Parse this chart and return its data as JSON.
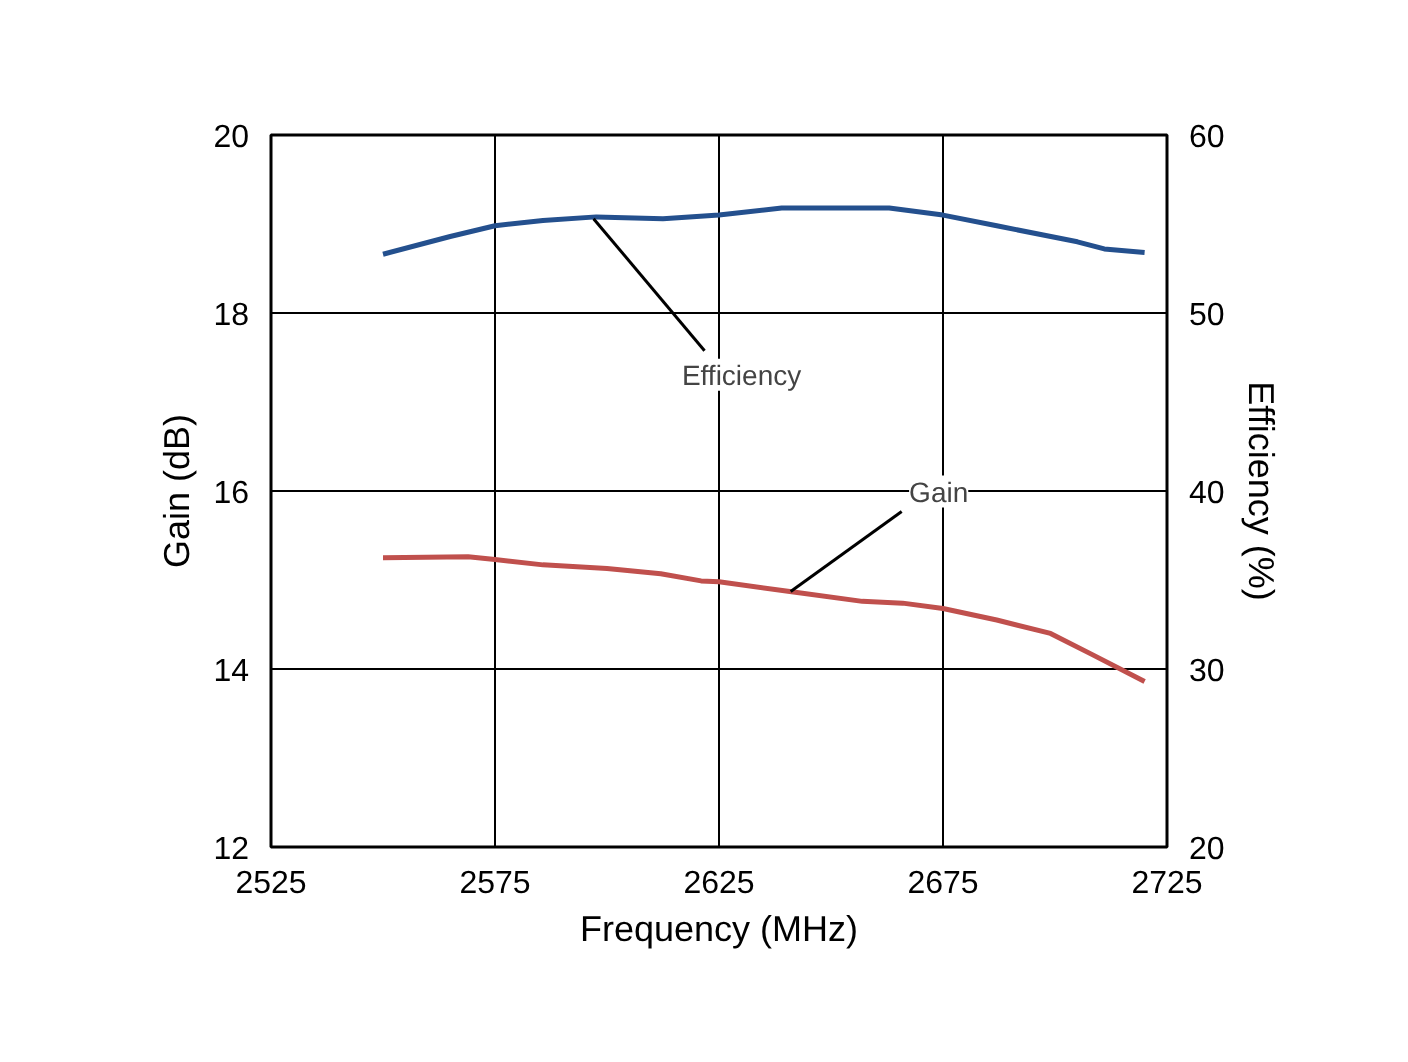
{
  "chart_data": {
    "type": "line",
    "xlabel": "Frequency (MHz)",
    "ylabel": "Gain (dB)",
    "y2label": "Efficiency (%)",
    "xlim": [
      2525,
      2725
    ],
    "xticks": [
      2525,
      2575,
      2625,
      2675,
      2725
    ],
    "ylim": [
      12,
      20
    ],
    "yticks": [
      12,
      14,
      16,
      18,
      20
    ],
    "y2lim": [
      20,
      60
    ],
    "y2ticks": [
      20,
      30,
      40,
      50,
      60
    ],
    "grid": true,
    "marker": "none",
    "line_style": "solid",
    "series": [
      {
        "color": "#24508e",
        "axis": "y2",
        "x": [
          2550,
          2565,
          2575,
          2585.7,
          2597.6,
          2612.5,
          2625,
          2639,
          2663,
          2675,
          2687,
          2705,
          2711,
          2720
        ],
        "values": [
          53.3,
          54.3,
          54.9,
          55.2,
          55.4,
          55.3,
          55.5,
          55.9,
          55.9,
          55.5,
          54.9,
          54.0,
          53.6,
          53.4
        ]
      },
      {
        "color": "#c0504d",
        "x": [
          2550,
          2569,
          2575,
          2585.7,
          2600,
          2612,
          2621,
          2625,
          2640.8,
          2657,
          2666,
          2675,
          2687,
          2699,
          2708,
          2720
        ],
        "values": [
          15.25,
          15.26,
          15.23,
          15.17,
          15.13,
          15.07,
          14.99,
          14.98,
          14.87,
          14.76,
          14.74,
          14.68,
          14.55,
          14.4,
          14.17,
          13.86
        ]
      }
    ],
    "annotations": [
      {
        "text": "Efficiency",
        "x": 2597,
        "y": 19.06
      },
      {
        "text": "Gain",
        "x": 2641,
        "y": 14.87
      }
    ]
  }
}
